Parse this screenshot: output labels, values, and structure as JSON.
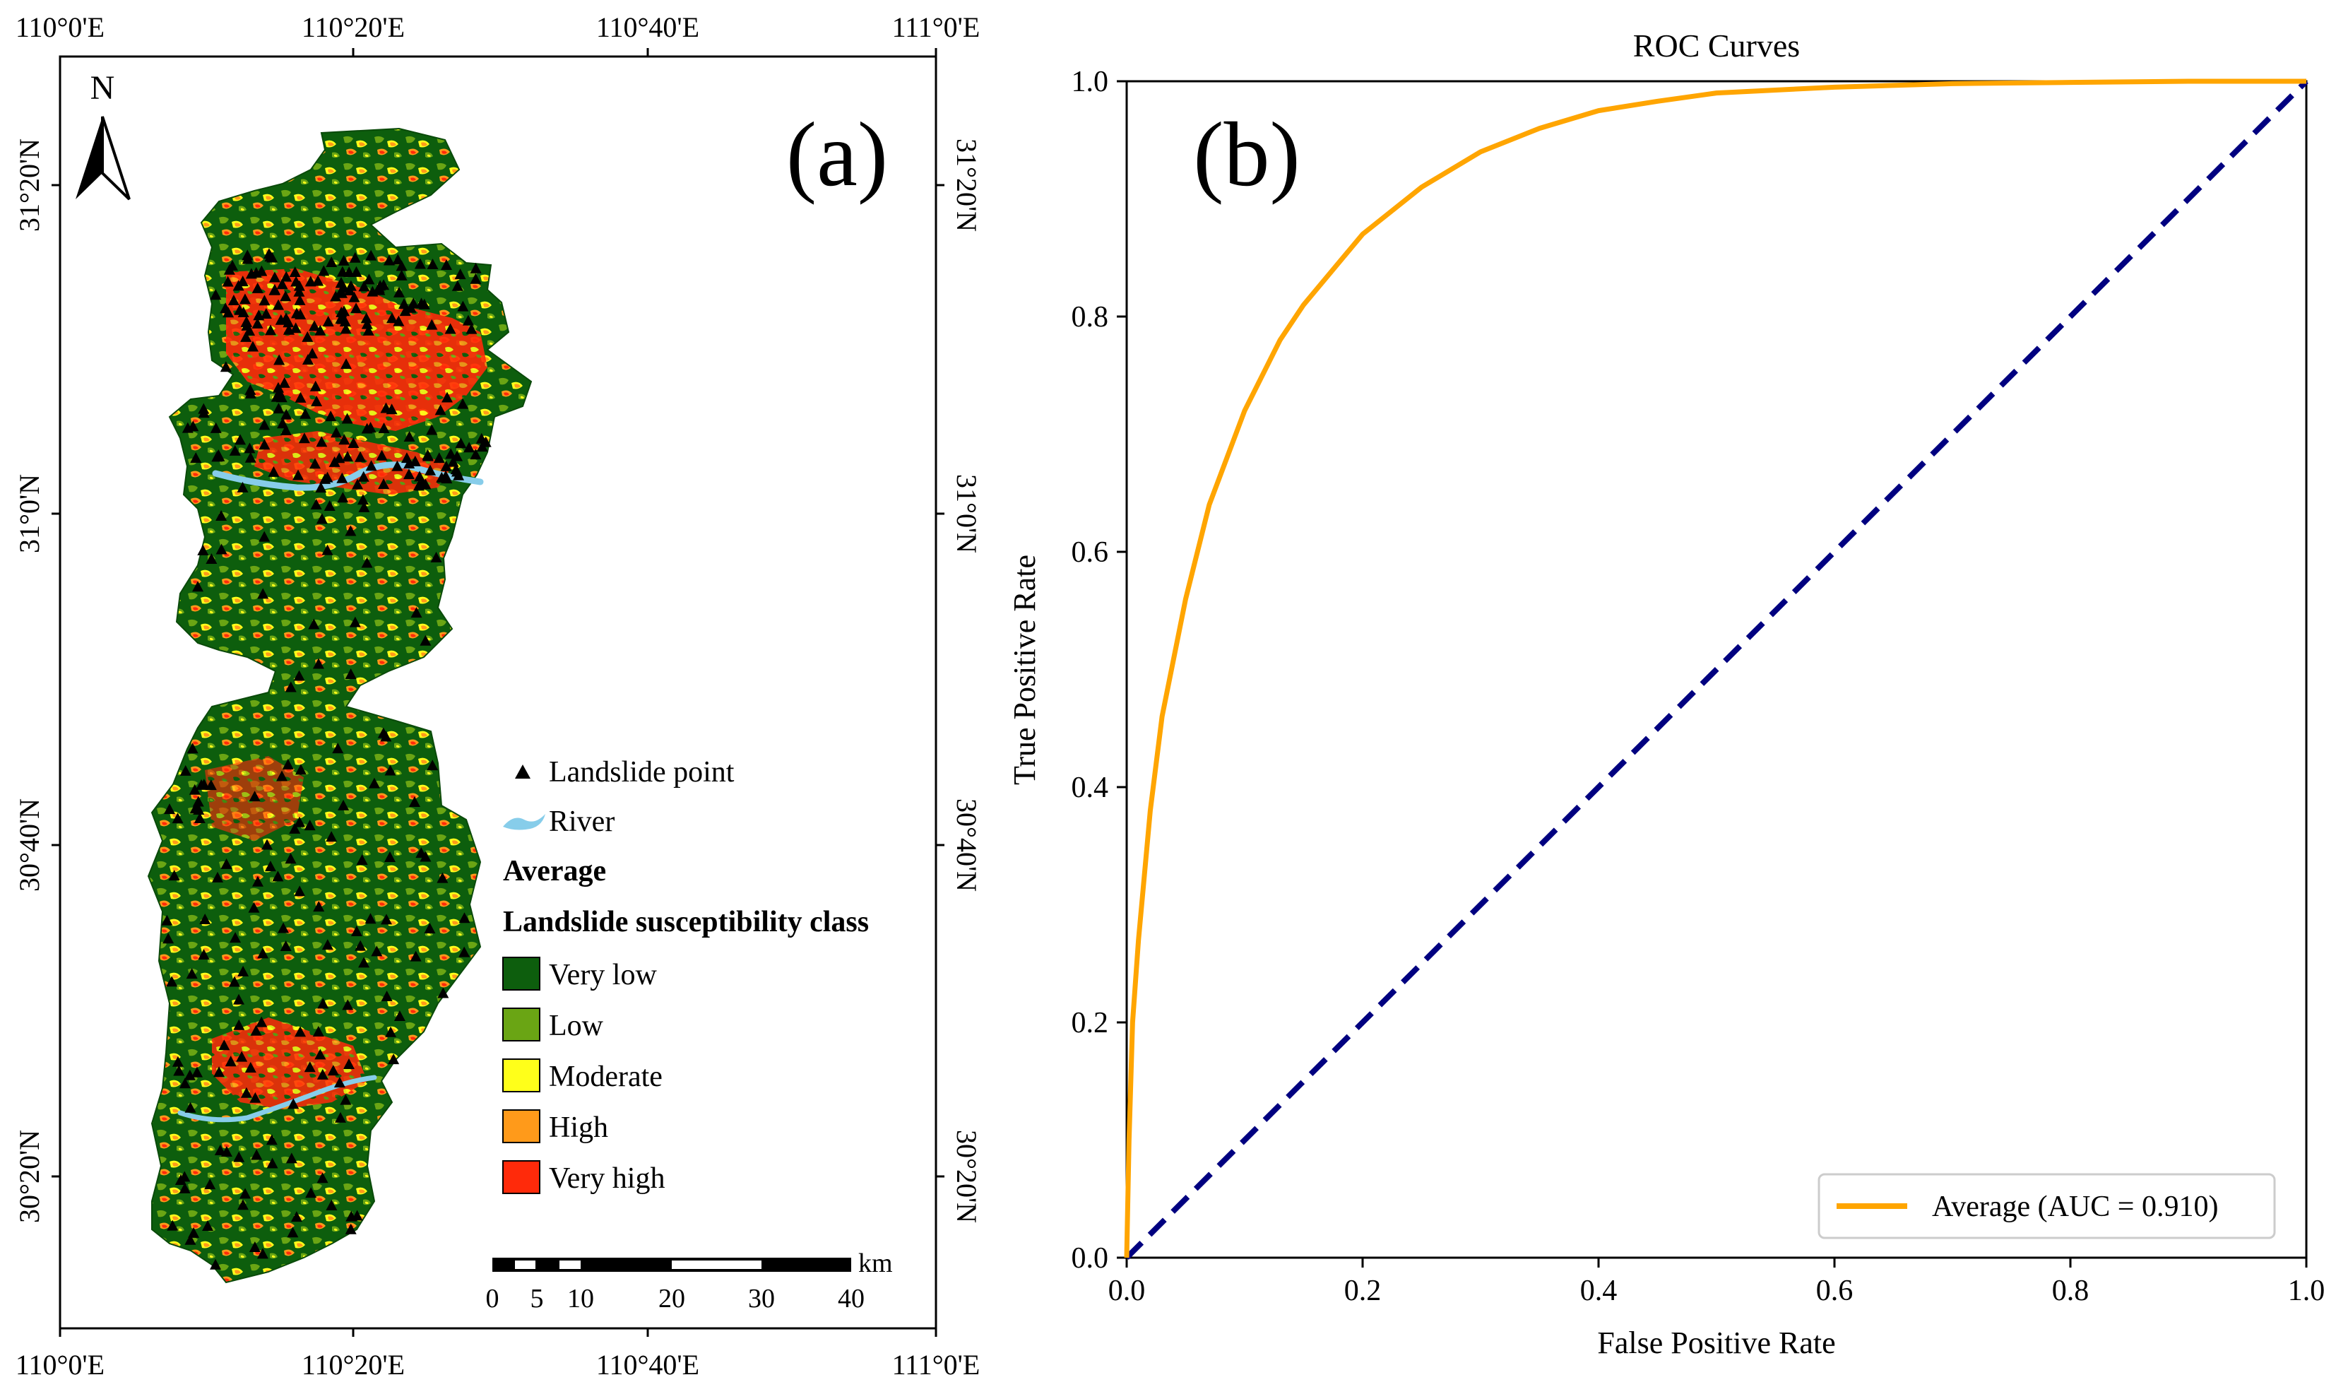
{
  "panel_a": {
    "label": "(a)",
    "north_label": "N",
    "lon_ticks": [
      "110°0'E",
      "110°20'E",
      "110°40'E",
      "111°0'E"
    ],
    "lat_ticks": [
      "31°20'N",
      "31°0'N",
      "30°40'N",
      "30°20'N"
    ],
    "legend": {
      "landslide_point": "Landslide point",
      "river": "River",
      "heading_1": "Average",
      "heading_2": "Landslide susceptibility class",
      "classes": [
        {
          "label": "Very low",
          "color": "#0d5e0d"
        },
        {
          "label": "Low",
          "color": "#6aa514"
        },
        {
          "label": "Moderate",
          "color": "#ffff1a"
        },
        {
          "label": "High",
          "color": "#ff9a1a"
        },
        {
          "label": "Very high",
          "color": "#ff2a0a"
        }
      ],
      "river_color": "#87cdea"
    },
    "scale_bar": {
      "labels": [
        "0",
        "5",
        "10",
        "20",
        "30",
        "40"
      ],
      "unit": "km"
    }
  },
  "panel_b": {
    "label": "(b)",
    "chart_data": {
      "type": "line",
      "title": "ROC Curves",
      "xlabel": "False Positive Rate",
      "ylabel": "True Positive Rate",
      "xlim": [
        0.0,
        1.0
      ],
      "ylim": [
        0.0,
        1.0
      ],
      "x_ticks": [
        "0.0",
        "0.2",
        "0.4",
        "0.6",
        "0.8",
        "1.0"
      ],
      "y_ticks": [
        "0.0",
        "0.2",
        "0.4",
        "0.6",
        "0.8",
        "1.0"
      ],
      "legend_position": "lower-right",
      "series": [
        {
          "name": "Average (AUC = 0.910)",
          "color": "#ffa500",
          "style": "solid",
          "x": [
            0.0,
            0.002,
            0.005,
            0.01,
            0.02,
            0.03,
            0.05,
            0.07,
            0.1,
            0.13,
            0.15,
            0.2,
            0.25,
            0.3,
            0.35,
            0.4,
            0.45,
            0.5,
            0.6,
            0.7,
            0.8,
            0.9,
            1.0
          ],
          "y": [
            0.0,
            0.1,
            0.2,
            0.27,
            0.38,
            0.46,
            0.56,
            0.64,
            0.72,
            0.78,
            0.81,
            0.87,
            0.91,
            0.94,
            0.96,
            0.975,
            0.983,
            0.99,
            0.995,
            0.998,
            0.999,
            1.0,
            1.0
          ]
        },
        {
          "color": "#000080",
          "style": "dashed",
          "x": [
            0.0,
            1.0
          ],
          "y": [
            0.0,
            1.0
          ]
        }
      ]
    }
  }
}
